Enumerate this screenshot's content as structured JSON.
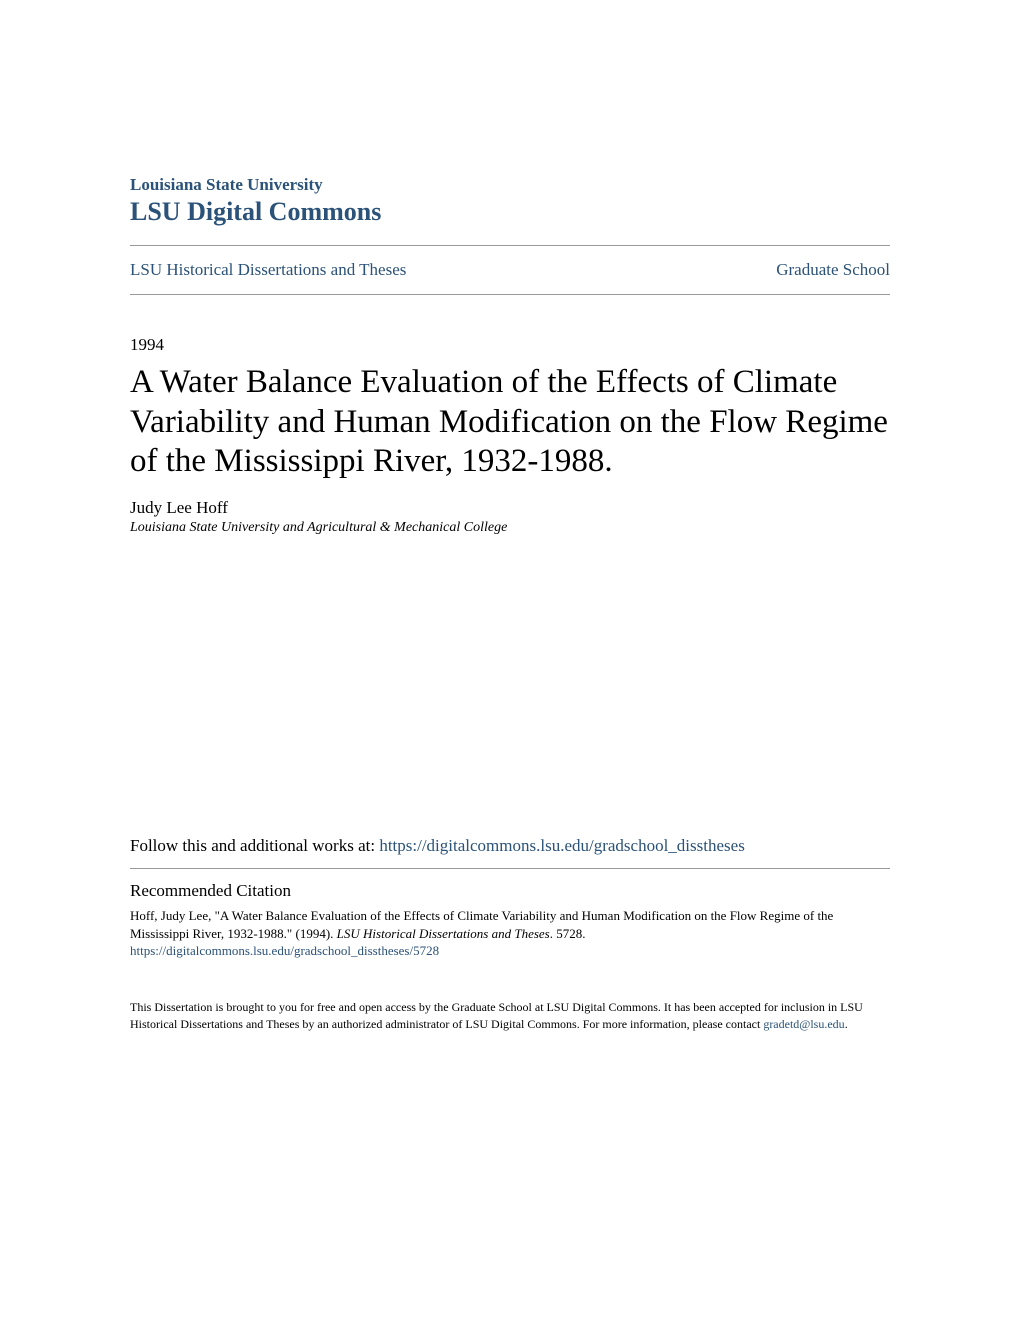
{
  "header": {
    "institution": "Louisiana State University",
    "commons": "LSU Digital Commons",
    "text_color": "#2b5278"
  },
  "nav": {
    "left_link": "LSU Historical Dissertations and Theses",
    "right_link": "Graduate School"
  },
  "document": {
    "year": "1994",
    "title": "A Water Balance Evaluation of the Effects of Climate Variability and Human Modification on the Flow Regime of the Mississippi River, 1932-1988.",
    "author": "Judy Lee Hoff",
    "affiliation": "Louisiana State University and Agricultural & Mechanical College"
  },
  "follow": {
    "prefix": "Follow this and additional works at: ",
    "url": "https://digitalcommons.lsu.edu/gradschool_disstheses"
  },
  "citation": {
    "heading": "Recommended Citation",
    "text_part1": "Hoff, Judy Lee, \"A Water Balance Evaluation of the Effects of Climate Variability and Human Modification on the Flow Regime of the Mississippi River, 1932-1988.\" (1994). ",
    "text_italic": "LSU Historical Dissertations and Theses",
    "text_part2": ". 5728.",
    "url": "https://digitalcommons.lsu.edu/gradschool_disstheses/5728"
  },
  "footer": {
    "text": "This Dissertation is brought to you for free and open access by the Graduate School at LSU Digital Commons. It has been accepted for inclusion in LSU Historical Dissertations and Theses by an authorized administrator of LSU Digital Commons. For more information, please contact ",
    "email": "gradetd@lsu.edu",
    "suffix": "."
  },
  "colors": {
    "link": "#2b5278",
    "text": "#000000",
    "divider": "#999999",
    "background": "#ffffff"
  }
}
